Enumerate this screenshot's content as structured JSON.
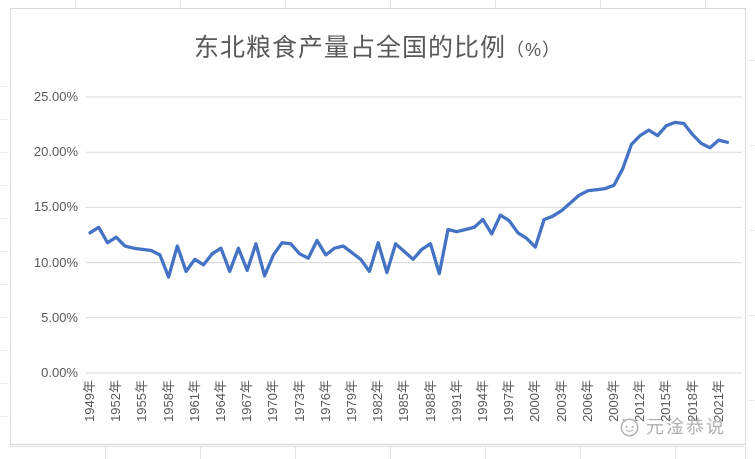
{
  "chart_data": {
    "type": "line",
    "title": "东北粮食产量占全国的比例",
    "title_suffix": "（%）",
    "years": [
      1949,
      1950,
      1951,
      1952,
      1953,
      1954,
      1955,
      1956,
      1957,
      1958,
      1959,
      1960,
      1961,
      1962,
      1963,
      1964,
      1965,
      1966,
      1967,
      1968,
      1969,
      1970,
      1971,
      1972,
      1973,
      1974,
      1975,
      1976,
      1977,
      1978,
      1979,
      1980,
      1981,
      1982,
      1983,
      1984,
      1985,
      1986,
      1987,
      1988,
      1989,
      1990,
      1991,
      1992,
      1993,
      1994,
      1995,
      1996,
      1997,
      1998,
      1999,
      2000,
      2001,
      2002,
      2003,
      2004,
      2005,
      2006,
      2007,
      2008,
      2009,
      2010,
      2011,
      2012,
      2013,
      2014,
      2015,
      2016,
      2017,
      2018,
      2019,
      2020,
      2021,
      2022
    ],
    "values": [
      12.7,
      13.2,
      11.8,
      12.3,
      11.5,
      11.3,
      11.2,
      11.1,
      10.7,
      8.7,
      11.5,
      9.2,
      10.3,
      9.8,
      10.8,
      11.3,
      9.2,
      11.3,
      9.3,
      11.7,
      8.8,
      10.7,
      11.8,
      11.7,
      10.8,
      10.4,
      12.0,
      10.7,
      11.3,
      11.5,
      10.9,
      10.3,
      9.2,
      11.8,
      9.1,
      11.7,
      11.0,
      10.3,
      11.2,
      11.7,
      9.0,
      13.0,
      12.8,
      13.0,
      13.2,
      13.9,
      12.6,
      14.3,
      13.8,
      12.7,
      12.2,
      11.4,
      13.9,
      14.2,
      14.7,
      15.4,
      16.1,
      16.5,
      16.6,
      16.7,
      17.0,
      18.5,
      20.7,
      21.5,
      22.0,
      21.5,
      22.4,
      22.7,
      22.6,
      21.6,
      20.8,
      20.4,
      21.1,
      20.9
    ],
    "xlabel": "",
    "ylabel": "",
    "ylim": [
      0,
      25
    ],
    "y_ticks": [
      0,
      5,
      10,
      15,
      20,
      25
    ],
    "y_tick_labels": [
      "0.00%",
      "5.00%",
      "10.00%",
      "15.00%",
      "20.00%",
      "25.00%"
    ],
    "x_tick_labels": [
      "1949年",
      "1952年",
      "1955年",
      "1958年",
      "1961年",
      "1964年",
      "1967年",
      "1970年",
      "1973年",
      "1976年",
      "1979年",
      "1982年",
      "1985年",
      "1988年",
      "1991年",
      "1994年",
      "1997年",
      "2000年",
      "2003年",
      "2006年",
      "2009年",
      "2012年",
      "2015年",
      "2018年",
      "2021年"
    ],
    "grid": "horizontal",
    "legend": "none",
    "line_color": "#4472C4",
    "gridline_color": "#D9D9D9",
    "label_color": "#595959",
    "title_color": "#595959"
  },
  "watermark": {
    "text": "元淦恭说",
    "logo": "cat-face-logo"
  }
}
